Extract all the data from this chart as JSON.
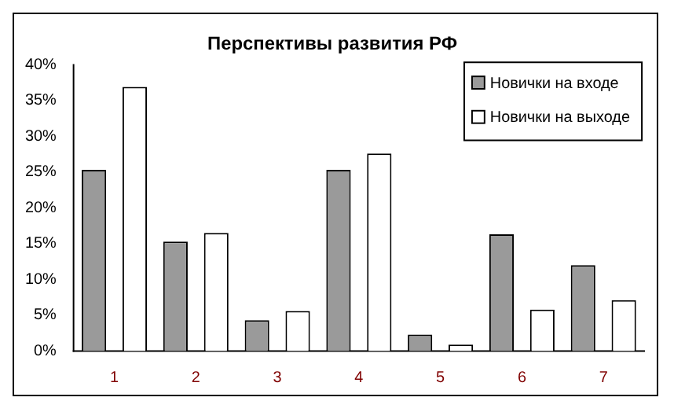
{
  "chart_data": {
    "type": "bar",
    "title": "Перспективы развития РФ",
    "categories": [
      "1",
      "2",
      "3",
      "4",
      "5",
      "6",
      "7"
    ],
    "series": [
      {
        "name": "Новички на входе",
        "color": "#9a9a9a",
        "values": [
          25.3,
          15.3,
          4.3,
          25.3,
          2.3,
          16.3,
          12.0
        ]
      },
      {
        "name": "Новички на выходе",
        "color": "#ffffff",
        "values": [
          36.9,
          16.5,
          5.6,
          27.6,
          0.9,
          5.8,
          7.1
        ]
      }
    ],
    "ylim": [
      0,
      40
    ],
    "yticks": [
      {
        "value": 0,
        "label": "0%"
      },
      {
        "value": 5,
        "label": "5%"
      },
      {
        "value": 10,
        "label": "10%"
      },
      {
        "value": 15,
        "label": "15%"
      },
      {
        "value": 20,
        "label": "20%"
      },
      {
        "value": 25,
        "label": "25%"
      },
      {
        "value": 30,
        "label": "30%"
      },
      {
        "value": 35,
        "label": "35%"
      },
      {
        "value": 40,
        "label": "40%"
      }
    ],
    "grid": false,
    "legend": "top right"
  }
}
